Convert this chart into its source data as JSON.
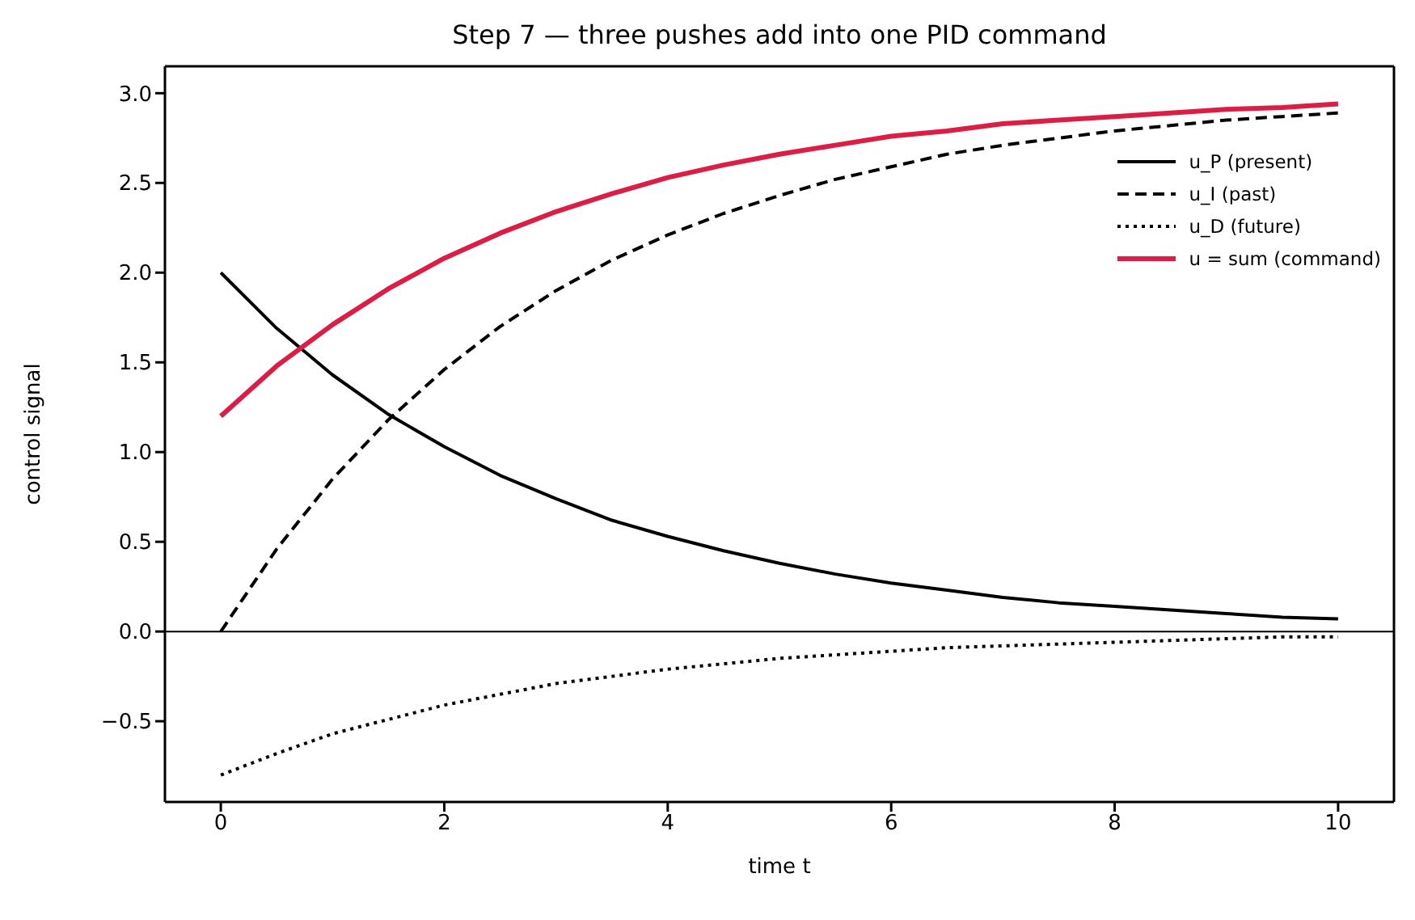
{
  "chart_data": {
    "type": "line",
    "title": "Step 7 — three pushes add into one PID command",
    "xlabel": "time t",
    "ylabel": "control signal",
    "x": [
      0,
      0.5,
      1,
      1.5,
      2,
      2.5,
      3,
      3.5,
      4,
      4.5,
      5,
      5.5,
      6,
      6.5,
      7,
      7.5,
      8,
      8.5,
      9,
      9.5,
      10
    ],
    "series": [
      {
        "name": "u_P (present)",
        "color": "#000000",
        "line_style": "solid",
        "values": [
          2.0,
          1.69,
          1.43,
          1.21,
          1.03,
          0.87,
          0.74,
          0.62,
          0.53,
          0.45,
          0.38,
          0.32,
          0.27,
          0.23,
          0.19,
          0.16,
          0.14,
          0.12,
          0.1,
          0.08,
          0.07
        ]
      },
      {
        "name": "u_I (past)",
        "color": "#000000",
        "line_style": "dashed",
        "values": [
          0.0,
          0.46,
          0.85,
          1.18,
          1.46,
          1.7,
          1.9,
          2.07,
          2.21,
          2.33,
          2.43,
          2.52,
          2.59,
          2.66,
          2.71,
          2.75,
          2.79,
          2.82,
          2.85,
          2.87,
          2.89
        ]
      },
      {
        "name": "u_D (future)",
        "color": "#000000",
        "line_style": "dotted",
        "values": [
          -0.8,
          -0.68,
          -0.57,
          -0.49,
          -0.41,
          -0.35,
          -0.29,
          -0.25,
          -0.21,
          -0.18,
          -0.15,
          -0.13,
          -0.11,
          -0.09,
          -0.08,
          -0.07,
          -0.06,
          -0.05,
          -0.04,
          -0.03,
          -0.03
        ]
      },
      {
        "name": "u = sum (command)",
        "color": "#dc1e46",
        "line_style": "solid",
        "values": [
          1.2,
          1.48,
          1.71,
          1.91,
          2.08,
          2.22,
          2.34,
          2.44,
          2.53,
          2.6,
          2.66,
          2.71,
          2.76,
          2.79,
          2.83,
          2.85,
          2.87,
          2.89,
          2.91,
          2.92,
          2.94
        ]
      }
    ],
    "xlim": [
      -0.5,
      10.5
    ],
    "xticks": [
      0,
      2,
      4,
      6,
      8,
      10
    ],
    "ylim": [
      -0.95,
      3.15
    ],
    "yticks": [
      {
        "value": -0.5,
        "label": "−0.5"
      },
      {
        "value": 0,
        "label": "0.0"
      },
      {
        "value": 0.5,
        "label": "0.5"
      },
      {
        "value": 1,
        "label": "1.0"
      },
      {
        "value": 1.5,
        "label": "1.5"
      },
      {
        "value": 2,
        "label": "2.0"
      },
      {
        "value": 2.5,
        "label": "2.5"
      },
      {
        "value": 3,
        "label": "3.0"
      }
    ],
    "ref_lines": [
      {
        "axis": "y",
        "value": 0,
        "color": "#000000"
      }
    ],
    "legend": "top right",
    "grid": false
  }
}
